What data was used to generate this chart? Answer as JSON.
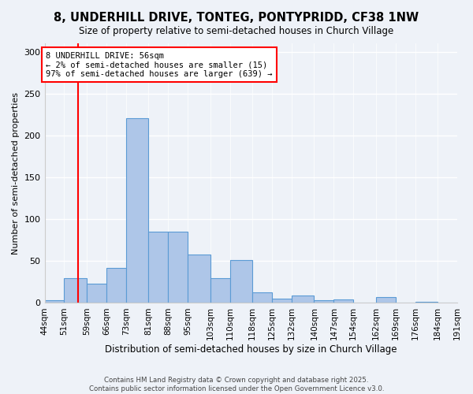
{
  "title": "8, UNDERHILL DRIVE, TONTEG, PONTYPRIDD, CF38 1NW",
  "subtitle": "Size of property relative to semi-detached houses in Church Village",
  "xlabel": "Distribution of semi-detached houses by size in Church Village",
  "ylabel": "Number of semi-detached properties",
  "bins": [
    44,
    51,
    59,
    66,
    73,
    81,
    88,
    95,
    103,
    110,
    118,
    125,
    132,
    140,
    147,
    154,
    162,
    169,
    176,
    184,
    191
  ],
  "counts": [
    3,
    30,
    23,
    42,
    221,
    85,
    85,
    58,
    30,
    51,
    13,
    5,
    9,
    3,
    4,
    0,
    7,
    0,
    1,
    0
  ],
  "bar_color": "#aec6e8",
  "bar_edge_color": "#5b9bd5",
  "vline_x": 56,
  "vline_color": "red",
  "annotation_title": "8 UNDERHILL DRIVE: 56sqm",
  "annotation_line1": "← 2% of semi-detached houses are smaller (15)",
  "annotation_line2": "97% of semi-detached houses are larger (639) →",
  "annotation_box_color": "white",
  "annotation_box_edge_color": "red",
  "ylim": [
    0,
    310
  ],
  "yticks": [
    0,
    50,
    100,
    150,
    200,
    250,
    300
  ],
  "background_color": "#eef2f8",
  "footnote1": "Contains HM Land Registry data © Crown copyright and database right 2025.",
  "footnote2": "Contains public sector information licensed under the Open Government Licence v3.0."
}
